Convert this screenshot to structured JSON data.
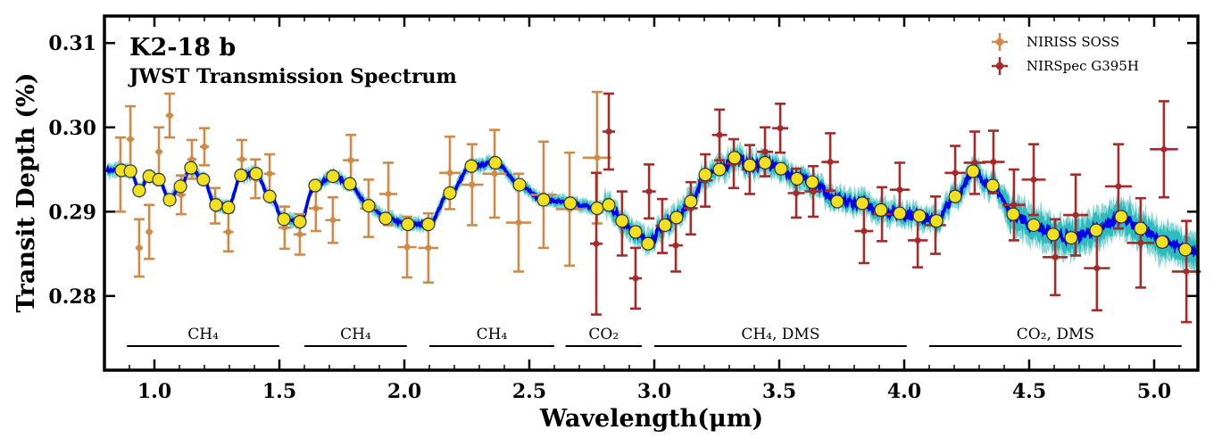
{
  "chart_data": {
    "type": "scatter",
    "title": "K2-18 b",
    "subtitle": "JWST Transmission Spectrum",
    "xlabel": "Wavelength(μm)",
    "ylabel": "Transit Depth (%)",
    "xlim": [
      0.8,
      5.175
    ],
    "ylim": [
      0.2712,
      0.3132
    ],
    "xticks": [
      1.0,
      1.5,
      2.0,
      2.5,
      3.0,
      3.5,
      4.0,
      4.5,
      5.0
    ],
    "xtick_labels": [
      "1.0",
      "1.5",
      "2.0",
      "2.5",
      "3.0",
      "3.5",
      "4.0",
      "4.5",
      "5.0"
    ],
    "yticks": [
      0.28,
      0.29,
      0.3,
      0.31
    ],
    "ytick_labels": [
      "0.28",
      "0.29",
      "0.30",
      "0.31"
    ],
    "grid": false,
    "legend_placement": "top-right",
    "colors": {
      "niriss": "#d08a48",
      "nirspec": "#a52a2a",
      "model": "#0000ee",
      "band1": "#2cbcbc",
      "band2": "#8fd8d8",
      "binned": "#f0e020"
    },
    "series": [
      {
        "name": "NIRISS SOSS",
        "kind": "errorbar",
        "color": "#d08a48",
        "x": [
          0.864,
          0.904,
          0.939,
          0.979,
          1.018,
          1.061,
          1.107,
          1.15,
          1.2,
          1.243,
          1.296,
          1.35,
          1.404,
          1.461,
          1.521,
          1.582,
          1.646,
          1.714,
          1.786,
          1.857,
          1.936,
          2.011,
          2.096,
          2.182,
          2.271,
          2.361,
          2.457,
          2.557,
          2.661,
          2.771
        ],
        "y": [
          0.2944,
          0.2986,
          0.2857,
          0.2876,
          0.2971,
          0.3014,
          0.292,
          0.2962,
          0.2977,
          0.2907,
          0.2876,
          0.2962,
          0.2939,
          0.2945,
          0.2881,
          0.2873,
          0.2904,
          0.289,
          0.2961,
          0.2904,
          0.2921,
          0.2858,
          0.2857,
          0.2946,
          0.2932,
          0.2945,
          0.2887,
          0.292,
          0.2903,
          0.2964
        ],
        "yerr": [
          0.0044,
          0.0039,
          0.0034,
          0.0032,
          0.0029,
          0.0026,
          0.0023,
          0.0023,
          0.0022,
          0.0021,
          0.0023,
          0.0023,
          0.0023,
          0.0023,
          0.0025,
          0.0024,
          0.0027,
          0.0027,
          0.003,
          0.0034,
          0.0037,
          0.0036,
          0.0041,
          0.0043,
          0.0048,
          0.0052,
          0.0058,
          0.0063,
          0.0067,
          0.0078
        ],
        "xerr": [
          0.015,
          0.015,
          0.015,
          0.015,
          0.015,
          0.015,
          0.018,
          0.018,
          0.018,
          0.02,
          0.02,
          0.02,
          0.022,
          0.022,
          0.025,
          0.025,
          0.028,
          0.03,
          0.032,
          0.034,
          0.036,
          0.038,
          0.04,
          0.042,
          0.045,
          0.048,
          0.05,
          0.052,
          0.055,
          0.057
        ]
      },
      {
        "name": "NIRSpec G395H",
        "kind": "errorbar",
        "color": "#a52a2a",
        "x": [
          2.768,
          2.818,
          2.871,
          2.925,
          2.979,
          3.032,
          3.086,
          3.146,
          3.204,
          3.261,
          3.318,
          3.382,
          3.443,
          3.504,
          3.568,
          3.636,
          3.704,
          3.839,
          3.911,
          3.982,
          4.054,
          4.125,
          4.204,
          4.282,
          4.357,
          4.439,
          4.518,
          4.604,
          4.686,
          4.771,
          4.857,
          4.946,
          5.039,
          5.129
        ],
        "y": [
          0.2862,
          0.2995,
          0.2886,
          0.2821,
          0.2924,
          0.2883,
          0.286,
          0.2904,
          0.2937,
          0.2991,
          0.2957,
          0.295,
          0.2971,
          0.2999,
          0.2922,
          0.2924,
          0.2959,
          0.2877,
          0.2897,
          0.2926,
          0.2866,
          0.2884,
          0.2946,
          0.2958,
          0.2959,
          0.2908,
          0.2938,
          0.2846,
          0.2896,
          0.2833,
          0.293,
          0.2863,
          0.2974,
          0.2829
        ],
        "yerr": [
          0.0084,
          0.0045,
          0.0038,
          0.0036,
          0.0032,
          0.0032,
          0.0031,
          0.0031,
          0.0031,
          0.003,
          0.0029,
          0.0029,
          0.0029,
          0.0029,
          0.0029,
          0.003,
          0.0034,
          0.0038,
          0.0032,
          0.0032,
          0.0032,
          0.0034,
          0.0032,
          0.0037,
          0.0037,
          0.0042,
          0.0042,
          0.0045,
          0.0048,
          0.005,
          0.005,
          0.0053,
          0.0057,
          0.006
        ],
        "xerr": [
          0.025,
          0.025,
          0.025,
          0.025,
          0.027,
          0.027,
          0.028,
          0.028,
          0.03,
          0.03,
          0.03,
          0.032,
          0.032,
          0.032,
          0.034,
          0.034,
          0.035,
          0.037,
          0.038,
          0.04,
          0.04,
          0.042,
          0.042,
          0.044,
          0.045,
          0.046,
          0.048,
          0.05,
          0.05,
          0.052,
          0.054,
          0.055,
          0.056,
          0.058
        ]
      },
      {
        "kind": "binned",
        "color": "#f0e020",
        "x": [
          0.868,
          0.904,
          0.939,
          0.979,
          1.018,
          1.061,
          1.104,
          1.146,
          1.196,
          1.246,
          1.296,
          1.346,
          1.407,
          1.461,
          1.518,
          1.582,
          1.643,
          1.714,
          1.782,
          1.857,
          1.925,
          2.014,
          2.096,
          2.182,
          2.268,
          2.364,
          2.461,
          2.557,
          2.664,
          2.771,
          2.818,
          2.871,
          2.925,
          2.975,
          3.043,
          3.089,
          3.146,
          3.204,
          3.261,
          3.321,
          3.382,
          3.443,
          3.507,
          3.571,
          3.632,
          3.732,
          3.832,
          3.907,
          3.982,
          4.061,
          4.129,
          4.204,
          4.275,
          4.354,
          4.436,
          4.518,
          4.596,
          4.668,
          4.768,
          4.868,
          4.946,
          5.032,
          5.125
        ],
        "y": [
          0.2949,
          0.2948,
          0.2925,
          0.2942,
          0.2938,
          0.2914,
          0.293,
          0.2952,
          0.2938,
          0.2908,
          0.2905,
          0.2943,
          0.2945,
          0.2918,
          0.2891,
          0.2888,
          0.2931,
          0.2942,
          0.2933,
          0.2907,
          0.2892,
          0.2885,
          0.2885,
          0.2922,
          0.2954,
          0.2958,
          0.2932,
          0.2914,
          0.291,
          0.2904,
          0.2908,
          0.2889,
          0.2876,
          0.2862,
          0.2884,
          0.2893,
          0.2912,
          0.2944,
          0.295,
          0.2964,
          0.2955,
          0.2958,
          0.2951,
          0.2939,
          0.2935,
          0.2912,
          0.291,
          0.2902,
          0.2898,
          0.2895,
          0.2889,
          0.2918,
          0.2948,
          0.2931,
          0.2897,
          0.2884,
          0.2873,
          0.2869,
          0.2878,
          0.2894,
          0.288,
          0.2864,
          0.2855
        ]
      }
    ],
    "annotations": [
      {
        "label": "CH₄",
        "x_range": [
          0.89,
          1.5
        ]
      },
      {
        "label": "CH₄",
        "x_range": [
          1.6,
          2.01
        ]
      },
      {
        "label": "CH₄",
        "x_range": [
          2.1,
          2.6
        ]
      },
      {
        "label": "CO₂",
        "x_range": [
          2.645,
          2.95
        ]
      },
      {
        "label": "CH₄, DMS",
        "x_range": [
          3.0,
          4.01
        ]
      },
      {
        "label": "CO₂, DMS",
        "x_range": [
          4.1,
          5.11
        ]
      }
    ]
  }
}
